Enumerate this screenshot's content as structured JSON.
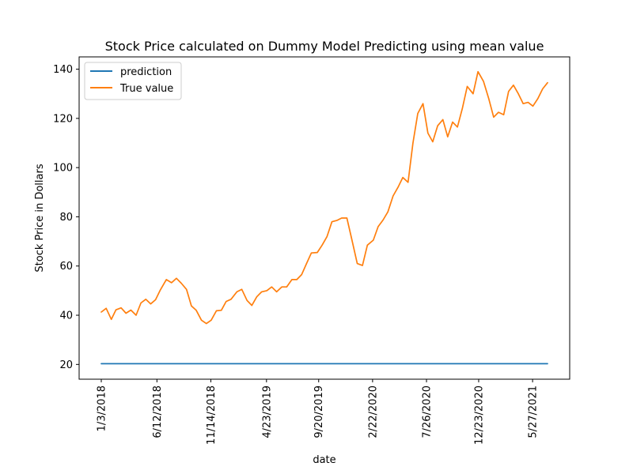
{
  "chart_data": {
    "type": "line",
    "title": "Stock Price calculated on Dummy Model Predicting using mean value",
    "xlabel": "date",
    "ylabel": "Stock Price in Dollars",
    "ylim": [
      14,
      145
    ],
    "yticks": [
      20,
      40,
      60,
      80,
      100,
      120,
      140
    ],
    "xticks": [
      "1/3/2018",
      "6/12/2018",
      "11/14/2018",
      "4/23/2019",
      "9/20/2019",
      "2/22/2020",
      "7/26/2020",
      "12/23/2020",
      "5/27/2021"
    ],
    "grid": false,
    "legend_position": "top-left",
    "x": [
      "1/3/2018",
      "1/17/2018",
      "2/1/2018",
      "2/14/2018",
      "3/1/2018",
      "3/15/2018",
      "3/29/2018",
      "4/13/2018",
      "4/27/2018",
      "5/11/2018",
      "5/25/2018",
      "6/8/2018",
      "6/22/2018",
      "7/9/2018",
      "7/24/2018",
      "8/7/2018",
      "8/21/2018",
      "9/5/2018",
      "9/19/2018",
      "10/3/2018",
      "10/18/2018",
      "11/1/2018",
      "11/15/2018",
      "11/30/2018",
      "12/14/2018",
      "12/28/2018",
      "1/11/2019",
      "1/28/2019",
      "2/11/2019",
      "2/26/2019",
      "3/12/2019",
      "3/26/2019",
      "4/9/2019",
      "4/24/2019",
      "5/8/2019",
      "5/22/2019",
      "6/6/2019",
      "6/20/2019",
      "7/5/2019",
      "7/19/2019",
      "8/2/2019",
      "8/16/2019",
      "8/30/2019",
      "9/16/2019",
      "9/30/2019",
      "10/14/2019",
      "10/28/2019",
      "11/11/2019",
      "11/25/2019",
      "12/10/2019",
      "12/24/2019",
      "1/9/2020",
      "1/24/2020",
      "2/7/2020",
      "2/24/2020",
      "3/9/2020",
      "3/23/2020",
      "4/6/2020",
      "4/21/2020",
      "5/5/2020",
      "5/19/2020",
      "6/3/2020",
      "6/17/2020",
      "7/1/2020",
      "7/16/2020",
      "7/30/2020",
      "8/13/2020",
      "8/27/2020",
      "9/11/2020",
      "9/25/2020",
      "10/9/2020",
      "10/23/2020",
      "11/6/2020",
      "11/20/2020",
      "12/7/2020",
      "12/21/2020",
      "1/6/2021",
      "1/21/2021",
      "2/4/2021",
      "2/18/2021",
      "3/5/2021",
      "3/19/2021",
      "4/2/2021",
      "4/16/2021",
      "4/30/2021",
      "5/14/2021",
      "5/28/2021",
      "6/11/2021",
      "6/25/2021",
      "7/9/2021"
    ],
    "series": [
      {
        "name": "prediction",
        "color": "#1f77b4",
        "values": [
          20.3,
          20.3,
          20.3,
          20.3,
          20.3,
          20.3,
          20.3,
          20.3,
          20.3,
          20.3,
          20.3,
          20.3,
          20.3,
          20.3,
          20.3,
          20.3,
          20.3,
          20.3,
          20.3,
          20.3,
          20.3,
          20.3,
          20.3,
          20.3,
          20.3,
          20.3,
          20.3,
          20.3,
          20.3,
          20.3,
          20.3,
          20.3,
          20.3,
          20.3,
          20.3,
          20.3,
          20.3,
          20.3,
          20.3,
          20.3,
          20.3,
          20.3,
          20.3,
          20.3,
          20.3,
          20.3,
          20.3,
          20.3,
          20.3,
          20.3,
          20.3,
          20.3,
          20.3,
          20.3,
          20.3,
          20.3,
          20.3,
          20.3,
          20.3,
          20.3,
          20.3,
          20.3,
          20.3,
          20.3,
          20.3,
          20.3,
          20.3,
          20.3,
          20.3,
          20.3,
          20.3,
          20.3,
          20.3,
          20.3,
          20.3,
          20.3,
          20.3,
          20.3,
          20.3,
          20.3,
          20.3,
          20.3,
          20.3,
          20.3,
          20.3,
          20.3,
          20.3,
          20.3,
          20.3,
          20.3
        ]
      },
      {
        "name": "True value",
        "color": "#ff7f0e",
        "values": [
          41.3,
          42.8,
          38.3,
          42.2,
          43.0,
          40.8,
          42.1,
          40.0,
          45.0,
          46.5,
          44.6,
          46.3,
          50.3,
          54.5,
          53.2,
          55.0,
          53.0,
          50.5,
          43.8,
          42.0,
          38.0,
          36.6,
          38.0,
          41.8,
          42.0,
          45.6,
          46.5,
          49.5,
          50.5,
          46.0,
          44.0,
          47.5,
          49.5,
          50.0,
          51.5,
          49.5,
          51.5,
          51.5,
          54.5,
          54.5,
          56.5,
          61.0,
          65.3,
          65.5,
          68.5,
          72.0,
          78.0,
          78.5,
          79.5,
          79.5,
          71.0,
          61.0,
          60.2,
          68.5,
          70.5,
          76.0,
          78.7,
          82.0,
          88.5,
          92.0,
          96.0,
          94.0,
          110.0,
          122.0,
          126.0,
          114.0,
          110.5,
          117.0,
          119.5,
          112.5,
          118.5,
          116.5,
          124.0,
          133.0,
          130.0,
          139.0,
          135.0,
          128.0,
          120.5,
          122.5,
          121.5,
          131.0,
          133.5,
          130.0,
          126.0,
          126.5,
          125.0,
          128.0,
          132.0,
          134.5
        ]
      }
    ]
  }
}
